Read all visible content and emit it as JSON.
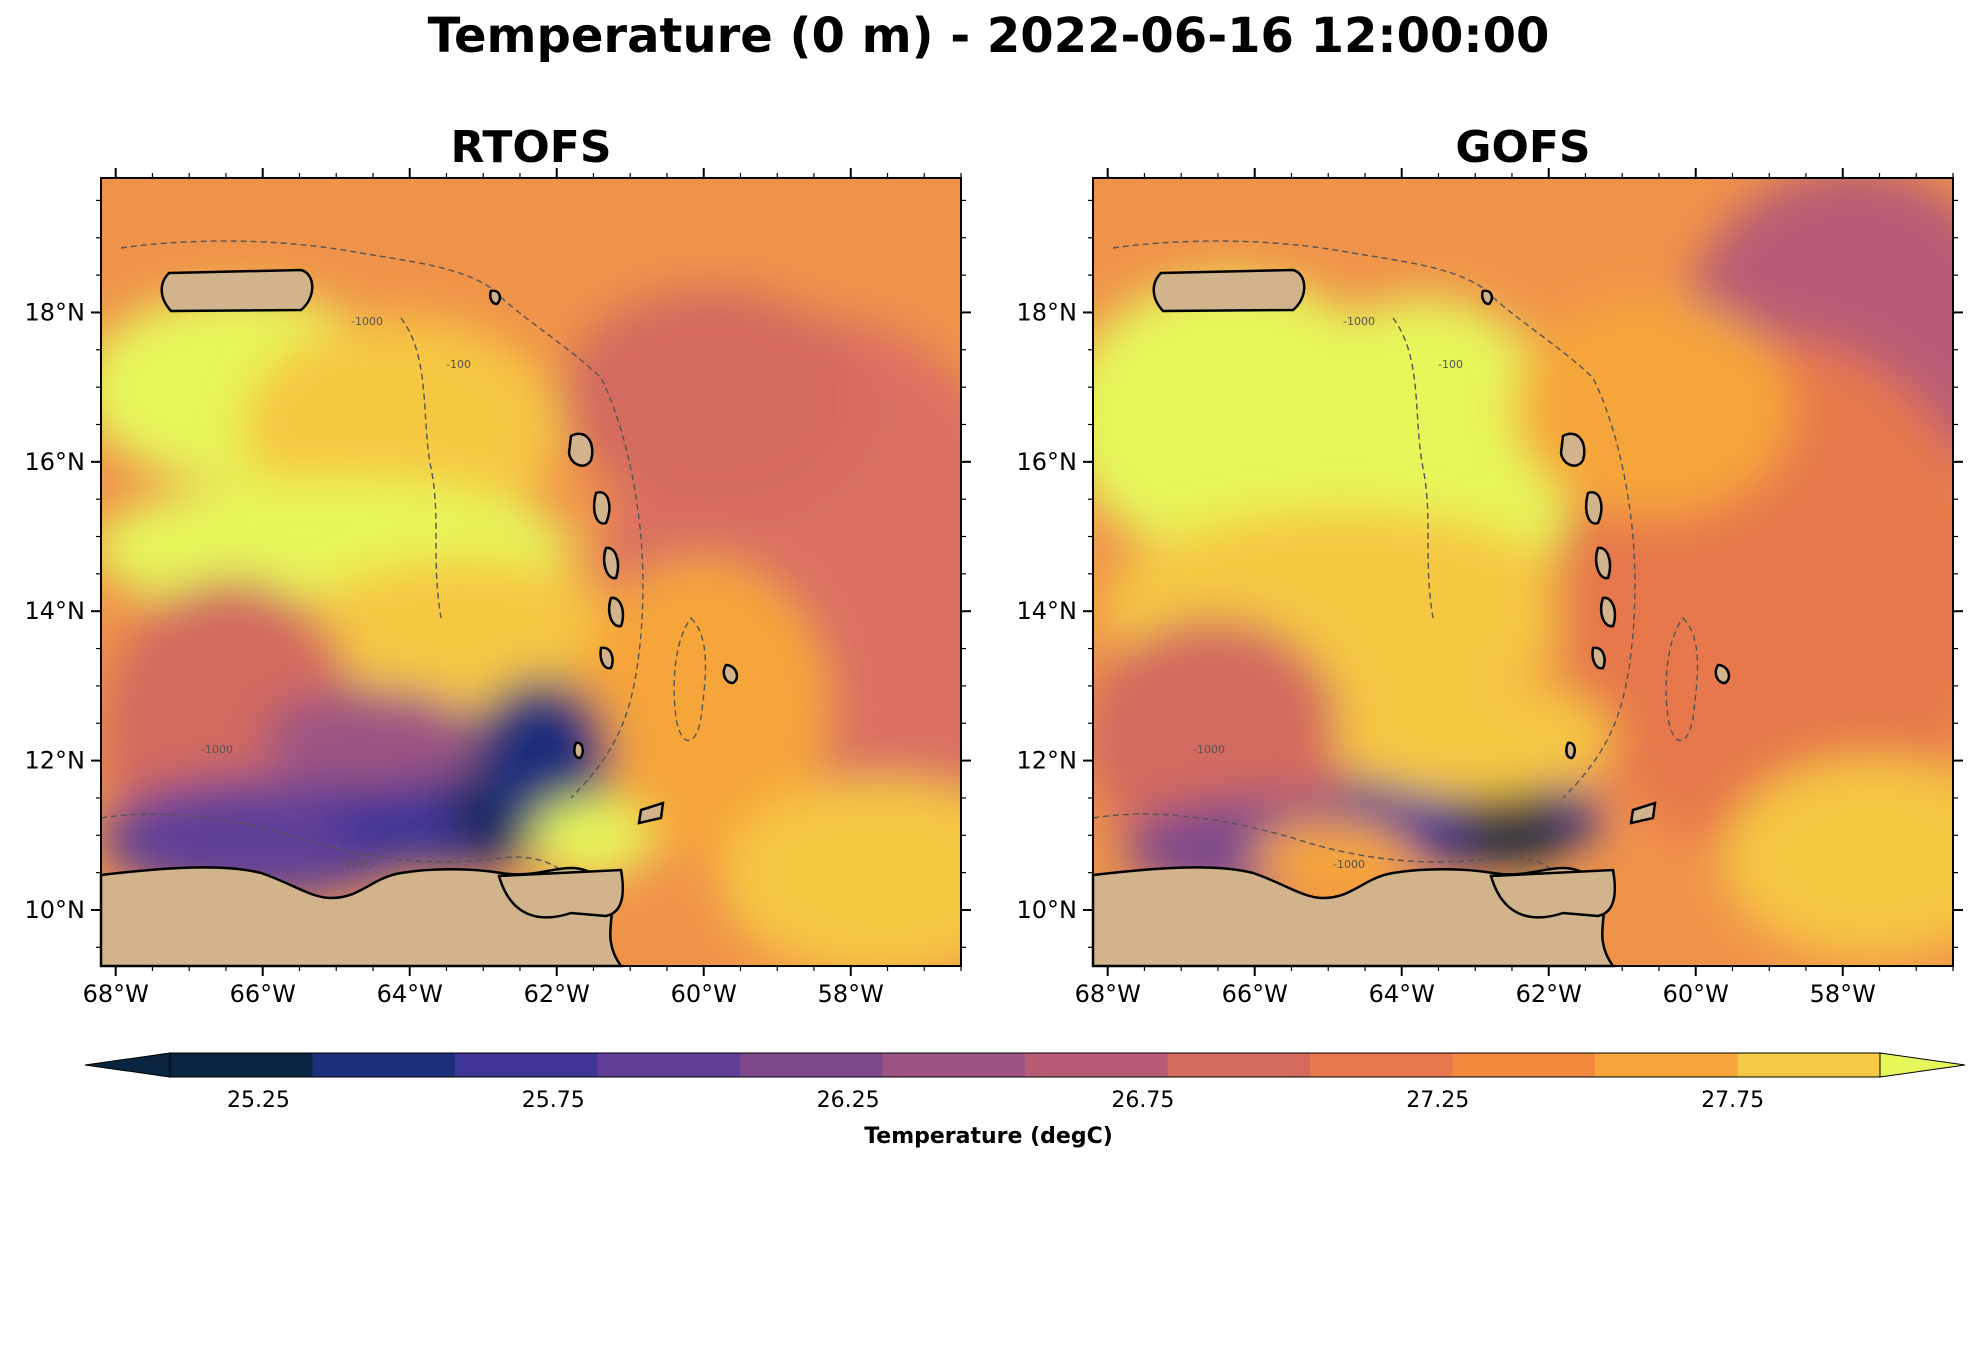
{
  "title": "Temperature (0 m) - 2022-06-16 12:00:00",
  "colors": {
    "land": "#d2b48c",
    "rivers": "#8fb4e6",
    "coast": "#000000",
    "isobath": "#555555",
    "levels": [
      "#0a2540",
      "#1c2f7a",
      "#3e3596",
      "#5f3f98",
      "#7e4a8c",
      "#9c5482",
      "#b85c75",
      "#d36a5e",
      "#e6784b",
      "#f2893c",
      "#f6a53a",
      "#f6c843"
    ],
    "under": "#0a2540",
    "over": "#e6f75a"
  },
  "panels": [
    {
      "title": "RTOFS",
      "lon_ticks": [
        "68°W",
        "66°W",
        "64°W",
        "62°W",
        "60°W",
        "58°W"
      ],
      "lat_ticks": [
        "10°N",
        "12°N",
        "14°N",
        "16°N",
        "18°N"
      ]
    },
    {
      "title": "GOFS",
      "lon_ticks": [
        "68°W",
        "66°W",
        "64°W",
        "62°W",
        "60°W",
        "58°W"
      ],
      "lat_ticks": [
        "10°N",
        "12°N",
        "14°N",
        "16°N",
        "18°N"
      ]
    }
  ],
  "map_extent": {
    "lon": [
      -68.2,
      -56.5
    ],
    "lat": [
      9.25,
      19.8
    ]
  },
  "isobath_labels": [
    "-1000",
    "-100"
  ],
  "colorbar": {
    "label": "Temperature (degC)",
    "ticks": [
      "25.25",
      "25.75",
      "26.25",
      "26.75",
      "27.25",
      "27.75"
    ],
    "tick_values": [
      25.25,
      25.75,
      26.25,
      26.75,
      27.25,
      27.75
    ],
    "range": [
      25.1,
      28.0
    ],
    "extend": "both"
  }
}
